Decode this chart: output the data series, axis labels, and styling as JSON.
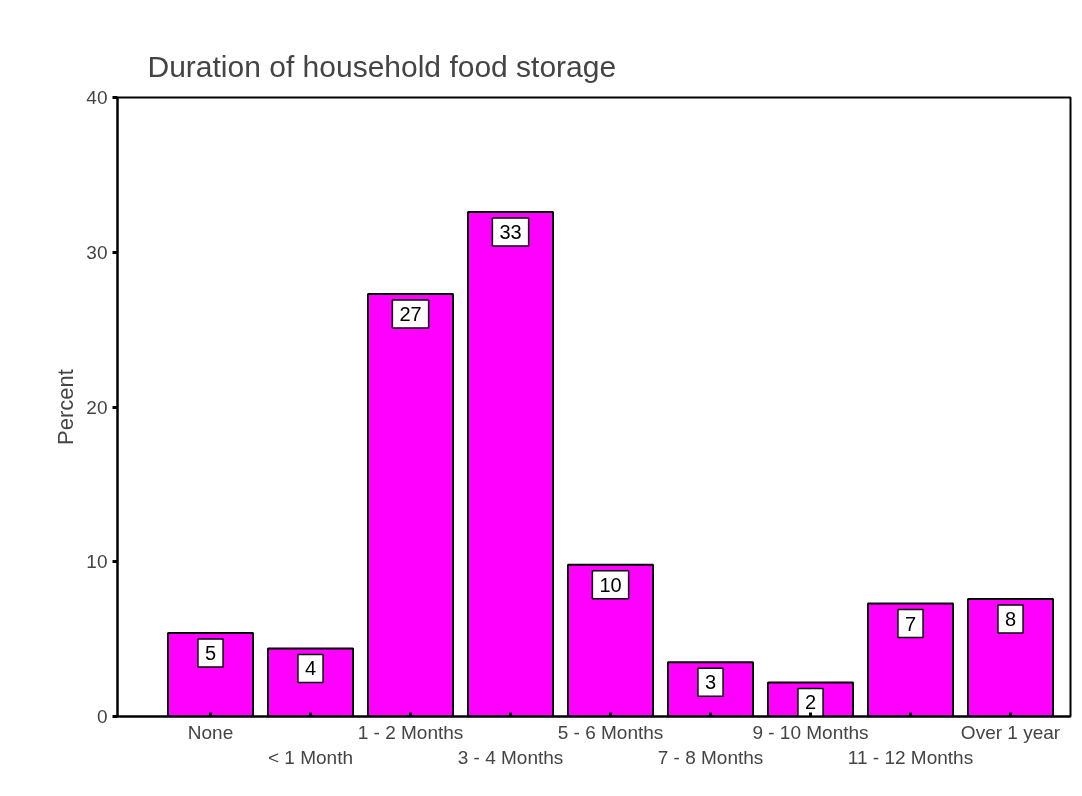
{
  "chart_data": {
    "type": "bar",
    "title": "Duration of household food storage",
    "ylabel": "Percent",
    "categories": [
      "None",
      "< 1 Month",
      "1 - 2 Months",
      "3 - 4 Months",
      "5 - 6 Months",
      "7 - 8 Months",
      "9 - 10 Months",
      "11 - 12 Months",
      "Over 1 year"
    ],
    "values": [
      5.4,
      4.4,
      27.3,
      32.6,
      9.8,
      3.5,
      2.2,
      7.3,
      7.6
    ],
    "value_labels": [
      "5",
      "4",
      "27",
      "33",
      "10",
      "3",
      "2",
      "7",
      "8"
    ],
    "color": "#ff00ff",
    "ylim": [
      0,
      40
    ],
    "yticks": [
      0,
      10,
      20,
      30,
      40
    ],
    "grid": false
  }
}
